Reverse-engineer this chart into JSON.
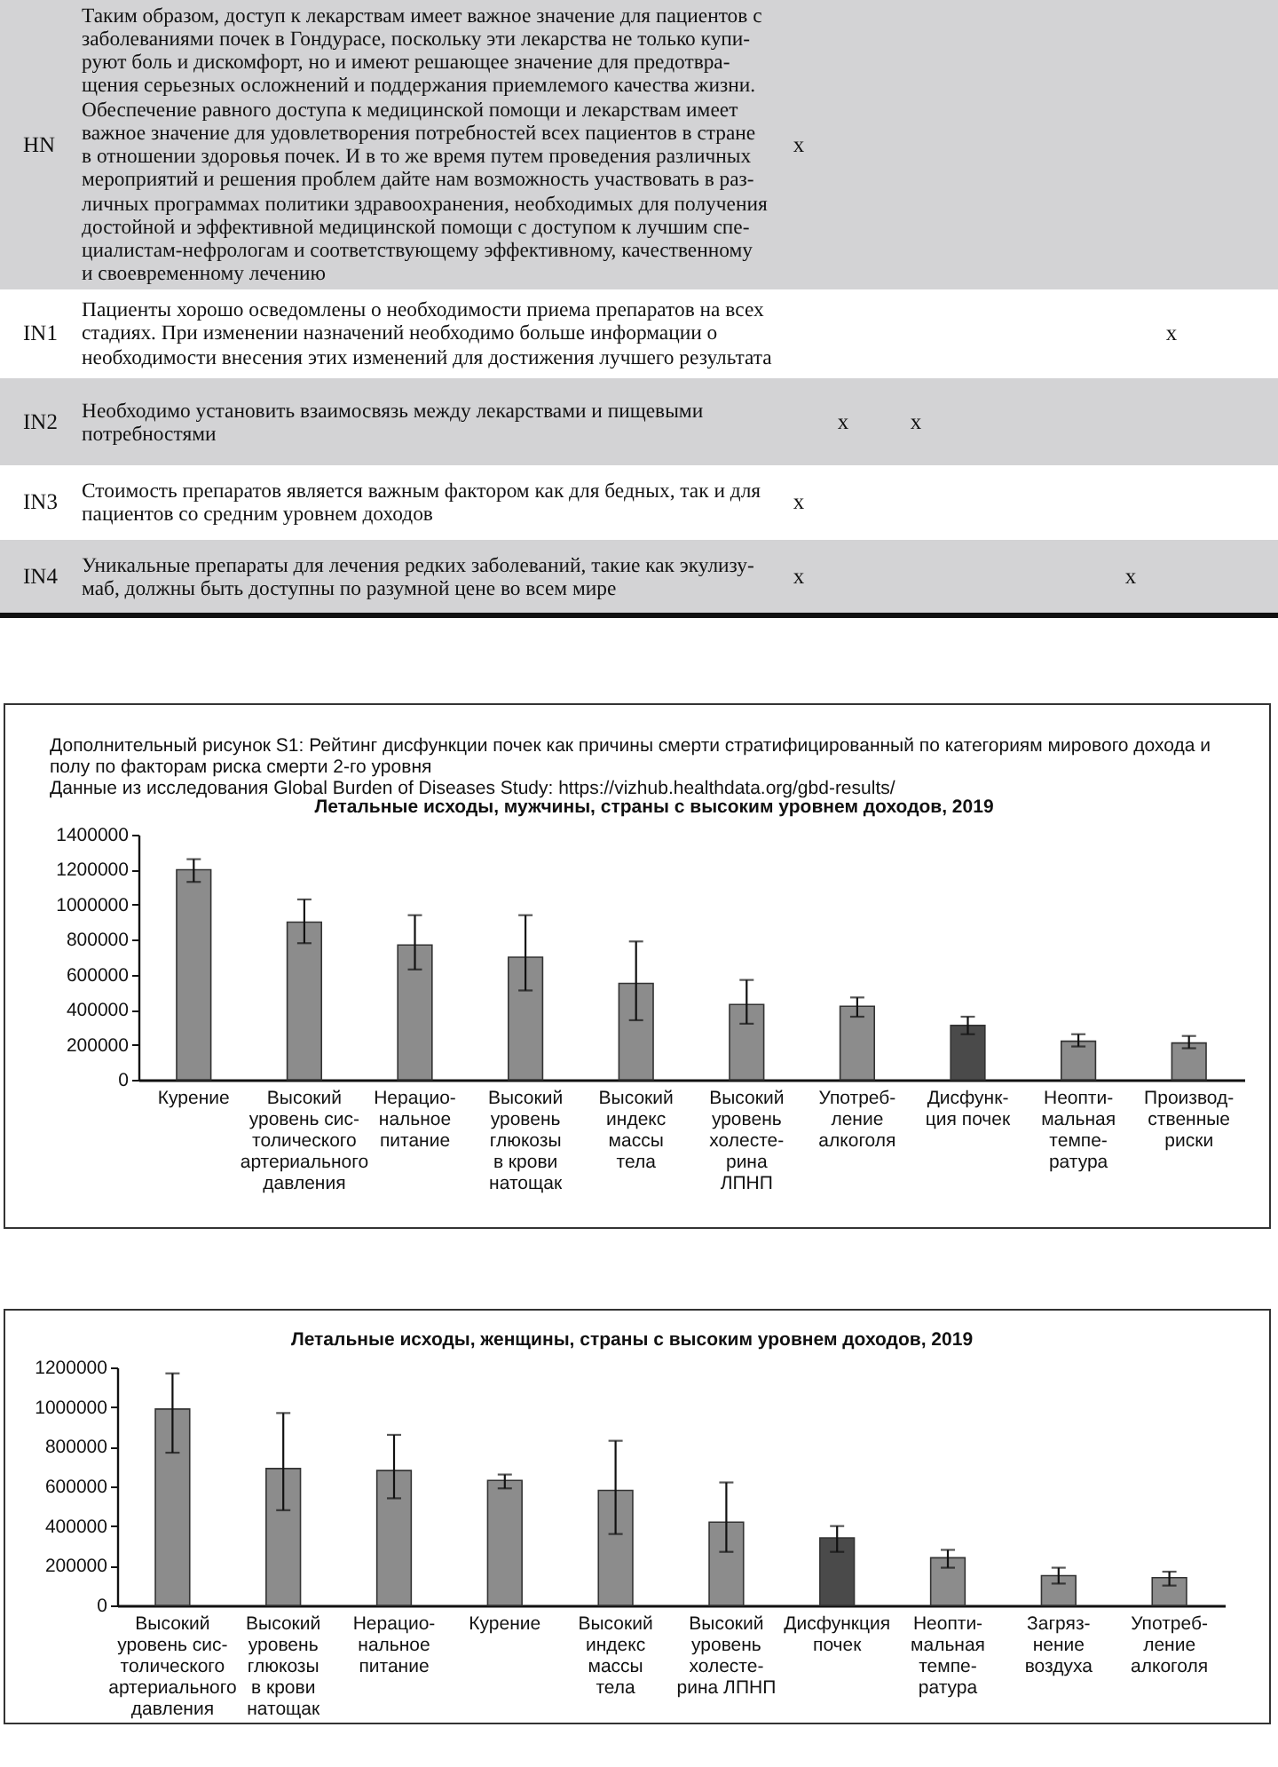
{
  "chart_data": [
    {
      "type": "other",
      "annotations": [
        "HN",
        "Таким образом, доступ к лекарствам имеет важное значение для пациентов с\nзаболеваниями почек в Гондурасе, поскольку эти лекарства не только купи-\nруют боль и дискомфорт, но и имеют решающее значение для предотвра-\nщения серьезных осложнений и поддержания приемлемого качества жизни.\nОбеспечение равного доступа к медицинской помощи и лекарствам имеет\nважное значение для удовлетворения потребностей всех пациентов в стране\nв отношении здоровья почек. И в то же время путем проведения различных\nмероприятий и решения проблем дайте нам возможность участвовать в раз-\nличных программах политики здравоохранения, необходимых для получения\nдостойной и эффективной медицинской помощи с доступом к лучшим спе-\nциалистам-нефрологам и соответствующему эффективному, качественному\nи своевременному лечению",
        "x",
        "IN1",
        "Пациенты хорошо осведомлены о необходимости приема препаратов на всех\nстадиях. При изменении назначений необходимо больше информации о\nнеобходимости внесения этих изменений для достижения лучшего результата",
        "x",
        "IN2",
        "Необходимо установить взаимосвязь между лекарствами и пищевыми\nпотребностями",
        "x",
        "x",
        "IN3",
        "Стоимость препаратов является важным фактором как для бедных, так и для\nпациентов со средним уровнем доходов",
        "x",
        "IN4",
        "Уникальные препараты для лечения редких заболеваний, такие как экулизу-\nмаб, должны быть доступны по разумной цене во всем мире",
        "x",
        "x"
      ]
    },
    {
      "type": "bar",
      "title": "Летальные исходы, мужчины, страны с высоким уровнем доходов, 2019",
      "annotations": [
        "Дополнительный рисунок S1: Рейтинг дисфункции почек как причины смерти стратифицированный по категориям мирового дохода и\nполу по факторам риска смерти 2-го уровня",
        "Данные из исследования Global Burden of Diseases Study: https://vizhub.healthdata.org/gbd-results/"
      ],
      "categories": [
        "Курение",
        "Высокий\nуровень сис-\nтолического\nартериального\nдавления",
        "Нерацио-\nнальное\nпитание",
        "Высокий\nуровень\nглюкозы\nв крови\nнатощак",
        "Высокий\nиндекс\nмассы\nтела",
        "Высокий\nуровень\nхолесте-\nрина\nЛПНП",
        "Употреб-\nление\nалкоголя",
        "Дисфунк-\nция почек",
        "Неопти-\nмальная\nтемпе-\nратура",
        "Производ-\nственные\nриски"
      ],
      "values": [
        1200000,
        900000,
        770000,
        700000,
        550000,
        430000,
        420000,
        310000,
        220000,
        210000
      ],
      "errors": [
        [
          1130000,
          1260000
        ],
        [
          780000,
          1030000
        ],
        [
          630000,
          940000
        ],
        [
          510000,
          940000
        ],
        [
          340000,
          790000
        ],
        [
          320000,
          570000
        ],
        [
          360000,
          470000
        ],
        [
          260000,
          360000
        ],
        [
          190000,
          260000
        ],
        [
          180000,
          250000
        ]
      ],
      "colors": [
        "#8c8c8c",
        "#8c8c8c",
        "#8c8c8c",
        "#8c8c8c",
        "#8c8c8c",
        "#8c8c8c",
        "#8c8c8c",
        "#4a4a4a",
        "#8c8c8c",
        "#8c8c8c"
      ],
      "ylim": [
        0,
        1400000
      ],
      "yticks": [
        0,
        200000,
        400000,
        600000,
        800000,
        1000000,
        1200000,
        1400000
      ]
    },
    {
      "type": "bar",
      "title": "Летальные исходы, женщины, страны с высоким уровнем доходов, 2019",
      "categories": [
        "Высокий\nуровень сис-\nтолического\nартериального\nдавления",
        "Высокий\nуровень\nглюкозы\nв крови\nнатощак",
        "Нерацио-\nнальное\nпитание",
        "Курение",
        "Высокий\nиндекс\nмассы\nтела",
        "Высокий\nуровень\nхолесте-\nрина ЛПНП",
        "Дисфункция\nпочек",
        "Неопти-\nмальная\nтемпе-\nратура",
        "Загряз-\nнение\nвоздуха",
        "Употреб-\nление\nалкоголя"
      ],
      "values": [
        990000,
        690000,
        680000,
        630000,
        580000,
        420000,
        340000,
        240000,
        150000,
        140000
      ],
      "errors": [
        [
          770000,
          1170000
        ],
        [
          480000,
          970000
        ],
        [
          540000,
          860000
        ],
        [
          590000,
          660000
        ],
        [
          360000,
          830000
        ],
        [
          270000,
          620000
        ],
        [
          270000,
          400000
        ],
        [
          190000,
          280000
        ],
        [
          110000,
          190000
        ],
        [
          100000,
          170000
        ]
      ],
      "colors": [
        "#8c8c8c",
        "#8c8c8c",
        "#8c8c8c",
        "#8c8c8c",
        "#8c8c8c",
        "#8c8c8c",
        "#4a4a4a",
        "#8c8c8c",
        "#8c8c8c",
        "#8c8c8c"
      ],
      "ylim": [
        0,
        1200000
      ],
      "yticks": [
        0,
        200000,
        400000,
        600000,
        800000,
        1000000,
        1200000
      ]
    }
  ]
}
